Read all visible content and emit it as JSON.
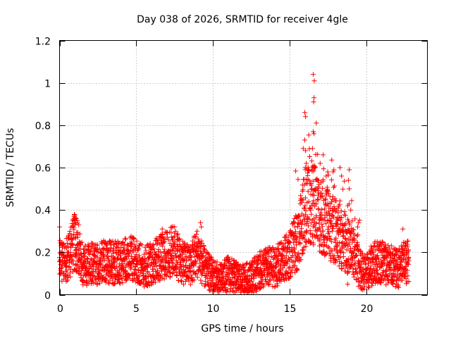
{
  "chart_data": {
    "type": "scatter",
    "title": "Day 038 of 2026, SRMTID for receiver 4gle",
    "xlabel": "GPS time / hours",
    "ylabel": "SRMTID / TECUs",
    "xlim": [
      0,
      24
    ],
    "ylim": [
      0,
      1.2
    ],
    "xticks": [
      0,
      5,
      10,
      15,
      20
    ],
    "xtick_labels": [
      "0",
      "5",
      "10",
      "15",
      "20"
    ],
    "yticks": [
      0,
      0.2,
      0.4,
      0.6,
      0.8,
      1,
      1.2
    ],
    "ytick_labels": [
      "0",
      "0.2",
      "0.4",
      "0.6",
      "0.8",
      "1",
      "1.2"
    ],
    "grid": true,
    "marker": "+",
    "series": [
      {
        "name": "SRMTID",
        "color": "#ff0000",
        "trend": {
          "x": [
            0,
            0.3,
            0.6,
            1.0,
            1.3,
            1.6,
            2.0,
            2.5,
            3.0,
            3.5,
            4.0,
            4.5,
            5.0,
            5.5,
            6.0,
            6.5,
            7.0,
            7.5,
            8.0,
            8.5,
            9.0,
            9.5,
            10.0,
            10.5,
            11.0,
            11.5,
            12.0,
            12.5,
            13.0,
            13.5,
            14.0,
            14.5,
            15.0,
            15.5,
            15.8,
            16.0,
            16.3,
            16.6,
            17.0,
            17.3,
            17.6,
            18.0,
            18.3,
            18.6,
            19.0,
            19.3,
            19.6,
            20.0,
            20.5,
            21.0,
            21.5,
            22.0,
            22.5,
            22.8
          ],
          "y": [
            0.17,
            0.14,
            0.18,
            0.25,
            0.2,
            0.13,
            0.15,
            0.14,
            0.16,
            0.15,
            0.15,
            0.17,
            0.16,
            0.13,
            0.15,
            0.17,
            0.19,
            0.21,
            0.15,
            0.14,
            0.2,
            0.12,
            0.09,
            0.07,
            0.1,
            0.08,
            0.07,
            0.08,
            0.11,
            0.13,
            0.13,
            0.15,
            0.19,
            0.25,
            0.33,
            0.42,
            0.45,
            0.42,
            0.38,
            0.36,
            0.32,
            0.3,
            0.27,
            0.24,
            0.22,
            0.17,
            0.12,
            0.1,
            0.15,
            0.16,
            0.14,
            0.12,
            0.15,
            0.16
          ]
        },
        "outliers": [
          {
            "x": 16.55,
            "y": 1.04
          },
          {
            "x": 16.62,
            "y": 1.01
          },
          {
            "x": 16.6,
            "y": 0.93
          },
          {
            "x": 16.58,
            "y": 0.91
          },
          {
            "x": 16.0,
            "y": 0.86
          },
          {
            "x": 16.05,
            "y": 0.84
          },
          {
            "x": 16.75,
            "y": 0.81
          },
          {
            "x": 16.55,
            "y": 0.77
          },
          {
            "x": 16.6,
            "y": 0.76
          },
          {
            "x": 16.0,
            "y": 0.73
          },
          {
            "x": 15.9,
            "y": 0.69
          },
          {
            "x": 16.05,
            "y": 0.68
          },
          {
            "x": 16.5,
            "y": 0.69
          },
          {
            "x": 17.2,
            "y": 0.66
          },
          {
            "x": 16.1,
            "y": 0.62
          },
          {
            "x": 16.6,
            "y": 0.6
          },
          {
            "x": 17.0,
            "y": 0.62
          },
          {
            "x": 18.3,
            "y": 0.6
          },
          {
            "x": 18.9,
            "y": 0.59
          },
          {
            "x": 17.5,
            "y": 0.58
          },
          {
            "x": 18.4,
            "y": 0.56
          },
          {
            "x": 16.3,
            "y": 0.54
          },
          {
            "x": 17.4,
            "y": 0.56
          },
          {
            "x": 18.9,
            "y": 0.5
          },
          {
            "x": 18.8,
            "y": 0.42
          },
          {
            "x": 19.0,
            "y": 0.4
          },
          {
            "x": 19.5,
            "y": 0.34
          },
          {
            "x": 19.45,
            "y": 0.32
          },
          {
            "x": 9.2,
            "y": 0.34
          },
          {
            "x": 9.25,
            "y": 0.32
          },
          {
            "x": 1.1,
            "y": 0.36
          },
          {
            "x": 1.05,
            "y": 0.34
          },
          {
            "x": 0.0,
            "y": 0.32
          },
          {
            "x": 6.7,
            "y": 0.31
          },
          {
            "x": 22.4,
            "y": 0.31
          },
          {
            "x": 15.35,
            "y": 0.32
          },
          {
            "x": 12.0,
            "y": 0.02
          },
          {
            "x": 10.3,
            "y": 0.03
          },
          {
            "x": 18.8,
            "y": 0.05
          }
        ]
      }
    ]
  }
}
